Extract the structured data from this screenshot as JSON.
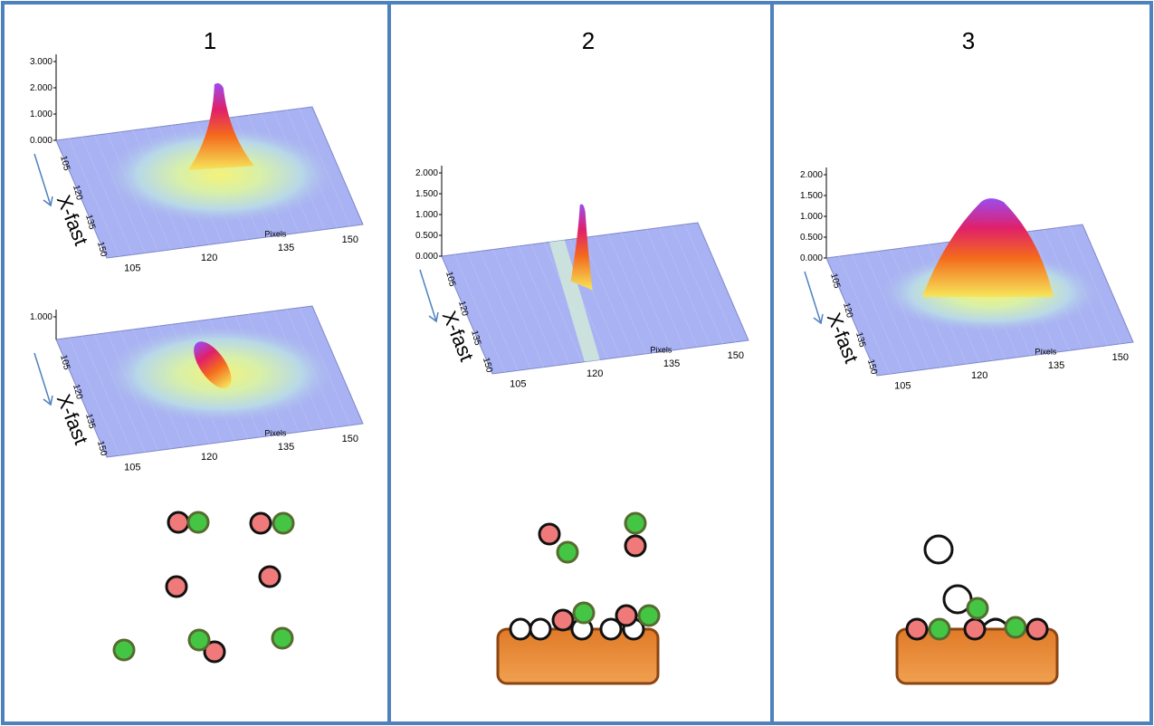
{
  "panels": [
    {
      "label": "1",
      "plots": [
        {
          "zticks": [
            "3.000",
            "2.000",
            "1.000",
            "0.000"
          ],
          "yticks": [
            "105",
            "120",
            "135",
            "150"
          ],
          "xticks": [
            "105",
            "120",
            "135",
            "150"
          ],
          "xlabel": "Pixels",
          "ylabel": "X-fast"
        },
        {
          "zticks": [
            "1.000"
          ],
          "yticks": [
            "105",
            "120",
            "135",
            "150"
          ],
          "xticks": [
            "105",
            "120",
            "135",
            "150"
          ],
          "xlabel": "Pixels",
          "ylabel": "X-fast"
        }
      ]
    },
    {
      "label": "2",
      "plots": [
        {
          "zticks": [
            "2.000",
            "1.500",
            "1.000",
            "0.500",
            "0.000"
          ],
          "yticks": [
            "105",
            "120",
            "135",
            "150"
          ],
          "xticks": [
            "105",
            "120",
            "135",
            "150"
          ],
          "xlabel": "Pixels",
          "ylabel": "X-fast"
        }
      ]
    },
    {
      "label": "3",
      "plots": [
        {
          "zticks": [
            "2.000",
            "1.500",
            "1.000",
            "0.500",
            "0.000"
          ],
          "yticks": [
            "105",
            "120",
            "135",
            "150"
          ],
          "xticks": [
            "105",
            "120",
            "135",
            "150"
          ],
          "xlabel": "Pixels",
          "ylabel": "X-fast"
        }
      ]
    }
  ]
}
